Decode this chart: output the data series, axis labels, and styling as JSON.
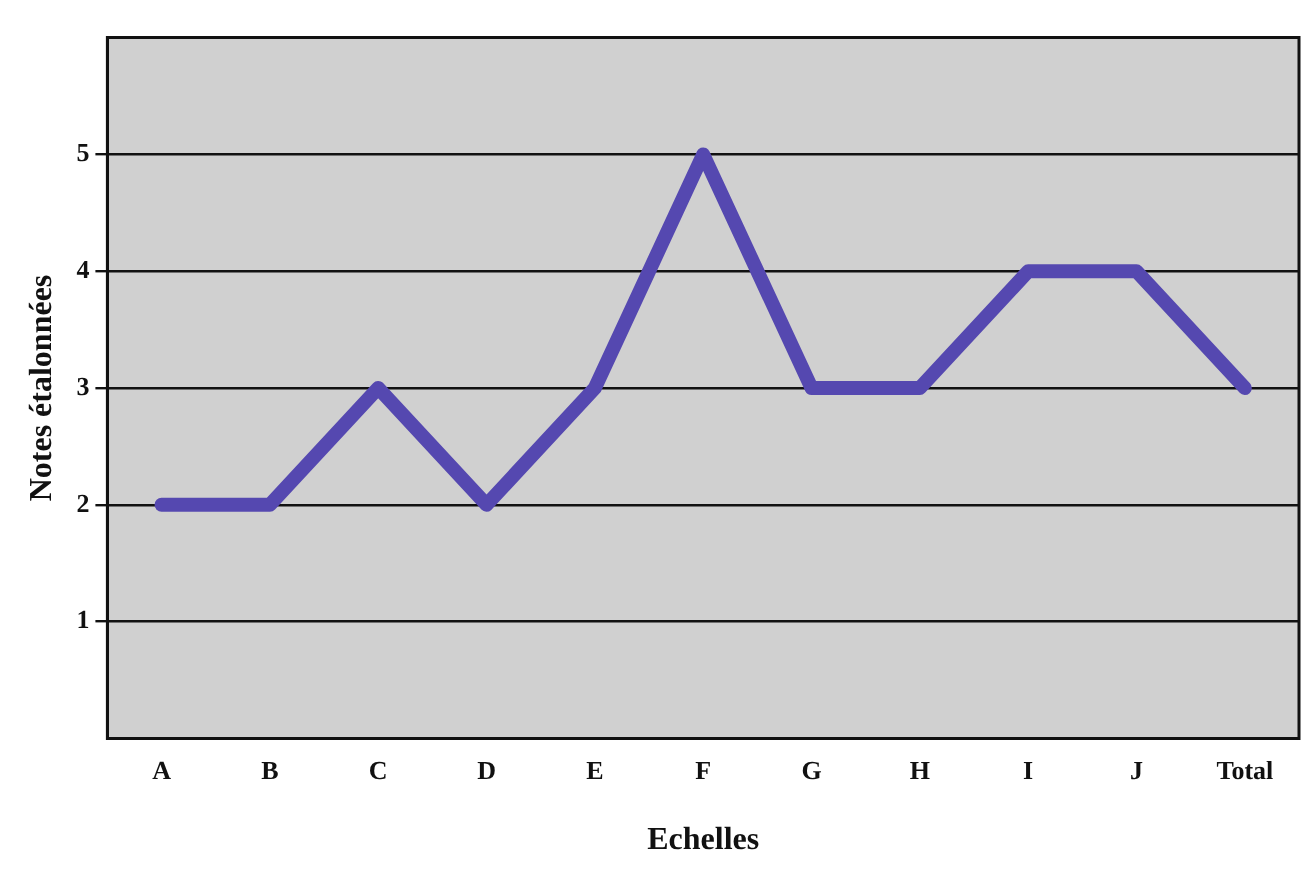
{
  "chart_data": {
    "type": "line",
    "xlabel": "Echelles",
    "ylabel": "Notes étalonnées",
    "categories": [
      "A",
      "B",
      "C",
      "D",
      "E",
      "F",
      "G",
      "H",
      "I",
      "J",
      "Total"
    ],
    "series": [
      {
        "color": "#5548b0",
        "values": [
          2,
          2,
          3,
          2,
          3,
          5,
          3,
          3,
          4,
          4,
          3
        ]
      }
    ],
    "ylim": [
      0,
      6
    ],
    "yticks": [
      1,
      2,
      3,
      4,
      5
    ],
    "grid": "y",
    "line_style": "solid",
    "marker": "none",
    "legend": false
  }
}
